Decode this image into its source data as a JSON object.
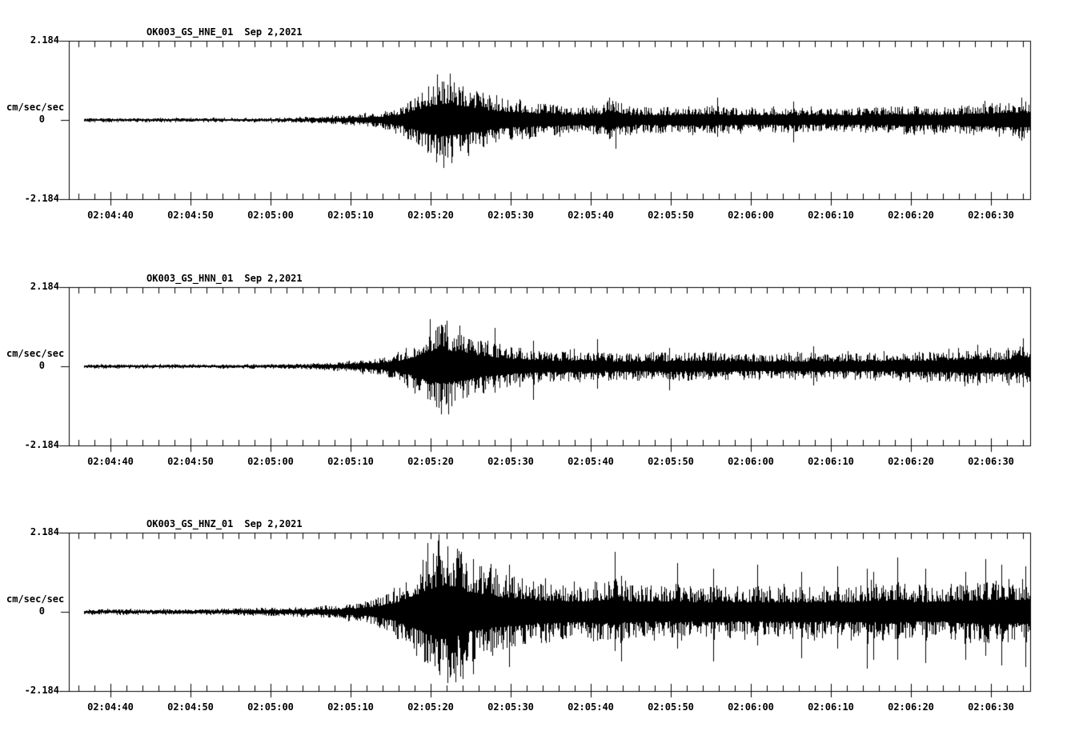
{
  "page": {
    "background": "#ffffff",
    "ink": "#000000"
  },
  "time_axis": {
    "labels": [
      "02:04:40",
      "02:04:50",
      "02:05:00",
      "02:05:10",
      "02:05:20",
      "02:05:30",
      "02:05:40",
      "02:05:50",
      "02:06:00",
      "02:06:10",
      "02:06:20",
      "02:06:30"
    ],
    "major_interval_s": 10,
    "minor_interval_s": 2,
    "window_start": "02:04:34.8",
    "window_end": "02:06:34.9"
  },
  "chart_data": [
    {
      "type": "line",
      "station": "OK003_GS_HNE_01",
      "date": "Sep 2,2021",
      "y_top": "2.184",
      "y_zero": "0",
      "y_bottom": "-2.184",
      "ylabel": "cm/sec/sec",
      "ylim": [
        -2.184,
        2.184
      ],
      "trace_color": "#000000",
      "envelope": [
        [
          1.9,
          0.055
        ],
        [
          20,
          0.055
        ],
        [
          26,
          0.06
        ],
        [
          30,
          0.077
        ],
        [
          33,
          0.11
        ],
        [
          36,
          0.154
        ],
        [
          39,
          0.22
        ],
        [
          41,
          0.353
        ],
        [
          43,
          0.6
        ],
        [
          45,
          0.99
        ],
        [
          46.5,
          1.147
        ],
        [
          48,
          1.1
        ],
        [
          50,
          0.93
        ],
        [
          52,
          0.73
        ],
        [
          54,
          0.6
        ],
        [
          57,
          0.51
        ],
        [
          60,
          0.44
        ],
        [
          63,
          0.375
        ],
        [
          66,
          0.4
        ],
        [
          68,
          0.53
        ],
        [
          70,
          0.375
        ],
        [
          75,
          0.353
        ],
        [
          80,
          0.397
        ],
        [
          85,
          0.33
        ],
        [
          90,
          0.375
        ],
        [
          95,
          0.33
        ],
        [
          100,
          0.353
        ],
        [
          105,
          0.397
        ],
        [
          108,
          0.353
        ],
        [
          112,
          0.42
        ],
        [
          116,
          0.485
        ],
        [
          120.2,
          0.53
        ]
      ],
      "spikes": [
        [
          46.0,
          1.25,
          0.9
        ],
        [
          46.8,
          1.05,
          1.3
        ],
        [
          67.5,
          0.62,
          0.5
        ],
        [
          68.3,
          0.5,
          0.78
        ],
        [
          81,
          0.62,
          0.45
        ],
        [
          90.5,
          0.5,
          0.6
        ],
        [
          119,
          0.62,
          0.55
        ]
      ]
    },
    {
      "type": "line",
      "station": "OK003_GS_HNN_01",
      "date": "Sep 2,2021",
      "y_top": "2.184",
      "y_zero": "0",
      "y_bottom": "-2.184",
      "ylabel": "cm/sec/sec",
      "ylim": [
        -2.184,
        2.184
      ],
      "trace_color": "#000000",
      "envelope": [
        [
          1.9,
          0.055
        ],
        [
          20,
          0.055
        ],
        [
          26,
          0.06
        ],
        [
          30,
          0.077
        ],
        [
          33,
          0.11
        ],
        [
          36,
          0.165
        ],
        [
          39,
          0.243
        ],
        [
          41,
          0.375
        ],
        [
          43,
          0.66
        ],
        [
          45,
          1.06
        ],
        [
          46.3,
          1.26
        ],
        [
          48,
          1.1
        ],
        [
          50,
          0.93
        ],
        [
          52,
          0.71
        ],
        [
          55,
          0.55
        ],
        [
          58,
          0.46
        ],
        [
          61,
          0.4
        ],
        [
          64,
          0.44
        ],
        [
          67,
          0.375
        ],
        [
          70,
          0.353
        ],
        [
          75,
          0.375
        ],
        [
          80,
          0.397
        ],
        [
          85,
          0.33
        ],
        [
          90,
          0.353
        ],
        [
          95,
          0.375
        ],
        [
          100,
          0.353
        ],
        [
          105,
          0.397
        ],
        [
          110,
          0.44
        ],
        [
          113,
          0.51
        ],
        [
          116,
          0.46
        ],
        [
          120.2,
          0.51
        ]
      ],
      "spikes": [
        [
          45.1,
          1.3,
          0.9
        ],
        [
          46.5,
          0.95,
          1.3
        ],
        [
          53.2,
          1.05,
          0.7
        ],
        [
          58,
          0.7,
          0.9
        ],
        [
          66,
          0.75,
          0.6
        ],
        [
          75,
          0.5,
          0.65
        ],
        [
          93,
          0.55,
          0.5
        ],
        [
          113.5,
          0.6,
          0.5
        ],
        [
          119.2,
          0.78,
          0.55
        ]
      ]
    },
    {
      "type": "line",
      "station": "OK003_GS_HNZ_01",
      "date": "Sep 2,2021",
      "y_top": "2.184",
      "y_zero": "0",
      "y_bottom": "-2.184",
      "ylabel": "cm/sec/sec",
      "ylim": [
        -2.184,
        2.184
      ],
      "trace_color": "#000000",
      "envelope": [
        [
          1.9,
          0.077
        ],
        [
          15,
          0.077
        ],
        [
          20,
          0.088
        ],
        [
          25,
          0.11
        ],
        [
          28,
          0.132
        ],
        [
          31,
          0.154
        ],
        [
          34,
          0.2
        ],
        [
          37,
          0.287
        ],
        [
          39,
          0.44
        ],
        [
          41,
          0.66
        ],
        [
          43,
          1.15
        ],
        [
          45,
          1.65
        ],
        [
          46.8,
          1.94
        ],
        [
          48.5,
          1.76
        ],
        [
          50,
          1.43
        ],
        [
          52,
          1.21
        ],
        [
          54,
          1.06
        ],
        [
          57,
          0.88
        ],
        [
          60,
          0.79
        ],
        [
          63,
          0.73
        ],
        [
          66,
          0.79
        ],
        [
          68,
          0.88
        ],
        [
          70,
          0.75
        ],
        [
          73,
          0.71
        ],
        [
          76,
          0.77
        ],
        [
          79,
          0.68
        ],
        [
          82,
          0.75
        ],
        [
          85,
          0.66
        ],
        [
          88,
          0.73
        ],
        [
          91,
          0.66
        ],
        [
          94,
          0.73
        ],
        [
          97,
          0.68
        ],
        [
          100,
          0.77
        ],
        [
          103,
          0.84
        ],
        [
          106,
          0.68
        ],
        [
          109,
          0.73
        ],
        [
          112,
          0.79
        ],
        [
          115,
          0.88
        ],
        [
          118,
          0.84
        ],
        [
          120.2,
          0.88
        ]
      ],
      "spikes": [
        [
          44.8,
          1.9,
          1.4
        ],
        [
          46.2,
          2.15,
          1.6
        ],
        [
          47.3,
          1.8,
          1.95
        ],
        [
          50.5,
          1.45,
          1.7
        ],
        [
          55,
          1.3,
          1.5
        ],
        [
          68.2,
          1.66,
          1.05
        ],
        [
          69,
          1.0,
          1.35
        ],
        [
          76,
          1.35,
          1.0
        ],
        [
          80.5,
          1.2,
          1.35
        ],
        [
          86,
          1.3,
          0.9
        ],
        [
          91.5,
          1.1,
          1.25
        ],
        [
          96,
          1.25,
          1.0
        ],
        [
          99.7,
          1.2,
          1.55
        ],
        [
          100.5,
          1.1,
          1.3
        ],
        [
          103.5,
          1.5,
          1.3
        ],
        [
          107,
          1.2,
          1.4
        ],
        [
          112,
          1.1,
          1.3
        ],
        [
          114.5,
          1.45,
          1.2
        ],
        [
          116.5,
          1.3,
          1.45
        ],
        [
          119.5,
          1.25,
          1.5
        ]
      ]
    }
  ]
}
